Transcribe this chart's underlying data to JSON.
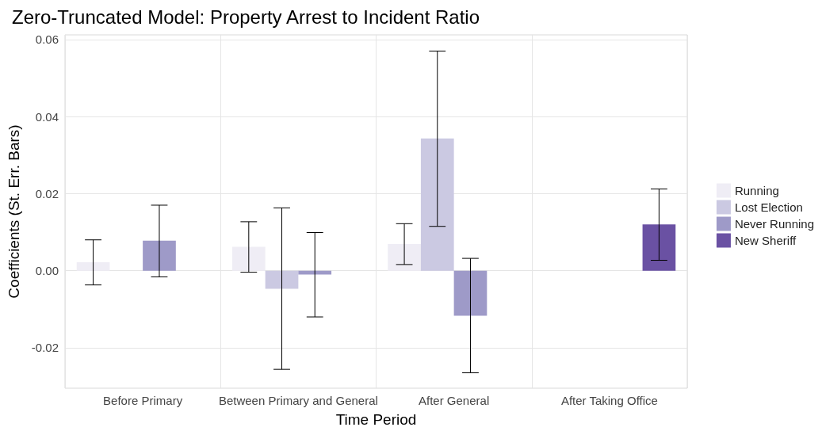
{
  "chart_data": {
    "type": "bar",
    "title": "Zero-Truncated Model: Property Arrest to Incident Ratio",
    "xlabel": "Time Period",
    "ylabel": "Coefficients (St. Err. Bars)",
    "categories": [
      "Before Primary",
      "Between Primary and General",
      "After General",
      "After Taking Office"
    ],
    "series": [
      {
        "name": "Running",
        "color": "#efedf5",
        "values": [
          0.0022,
          0.0062,
          0.0069,
          null
        ],
        "errors": [
          [
            -0.0037,
            0.008
          ],
          [
            -0.0004,
            0.0127
          ],
          [
            0.0016,
            0.0122
          ],
          null
        ]
      },
      {
        "name": "Lost Election",
        "color": "#cbc9e2",
        "values": [
          null,
          -0.0047,
          0.0343,
          null
        ],
        "errors": [
          null,
          [
            -0.0256,
            0.0163
          ],
          [
            0.0115,
            0.057
          ],
          null
        ]
      },
      {
        "name": "Never Running",
        "color": "#9e9ac8",
        "values": [
          0.0078,
          -0.001,
          -0.0117,
          null
        ],
        "errors": [
          [
            -0.0016,
            0.017
          ],
          [
            -0.012,
            0.0099
          ],
          [
            -0.0265,
            0.0032
          ],
          null
        ]
      },
      {
        "name": "New Sheriff",
        "color": "#6a51a3",
        "values": [
          null,
          null,
          null,
          0.012
        ],
        "errors": [
          null,
          null,
          null,
          [
            0.0027,
            0.0212
          ]
        ]
      }
    ],
    "ylim": [
      -0.0305,
      0.0612
    ],
    "yticks": [
      {
        "value": -0.02,
        "label": "-0.02"
      },
      {
        "value": 0,
        "label": "0.00"
      },
      {
        "value": 0.02,
        "label": "0.02"
      },
      {
        "value": 0.04,
        "label": "0.04"
      },
      {
        "value": 0.06,
        "label": "0.06"
      }
    ],
    "grid": true,
    "legend": "right"
  }
}
